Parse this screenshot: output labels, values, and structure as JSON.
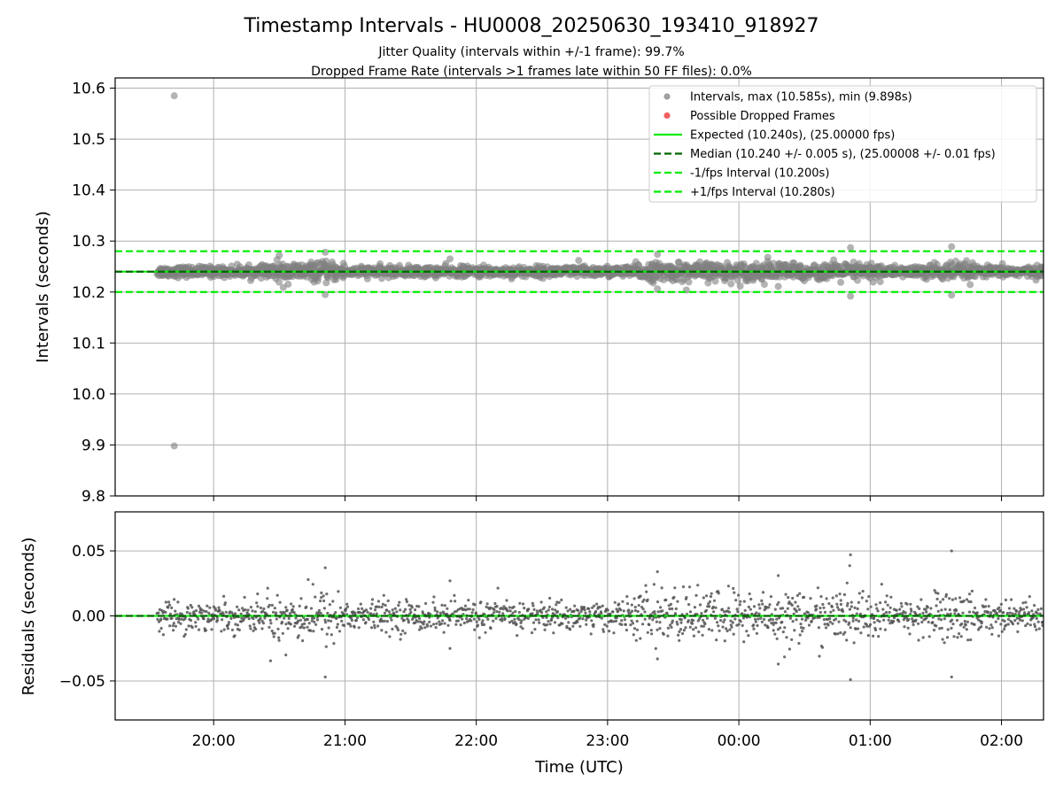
{
  "chart_data": {
    "title": "Timestamp Intervals - HU0008_20250630_193410_918927",
    "subtitles": [
      "Jitter Quality (intervals within +/-1 frame): 99.7%",
      "Dropped Frame Rate (intervals >1 frames late within 50 FF files): 0.0%"
    ],
    "x_axis": {
      "label": "Time (UTC)",
      "start_hours": 19.25,
      "end_hours": 26.32,
      "ticks": [
        {
          "hours": 20,
          "label": "20:00"
        },
        {
          "hours": 21,
          "label": "21:00"
        },
        {
          "hours": 22,
          "label": "22:00"
        },
        {
          "hours": 23,
          "label": "23:00"
        },
        {
          "hours": 24,
          "label": "00:00"
        },
        {
          "hours": 25,
          "label": "01:00"
        },
        {
          "hours": 26,
          "label": "02:00"
        }
      ],
      "data_start_hours": 19.57,
      "data_end_hours": 26.32
    },
    "panels": [
      {
        "type": "scatter",
        "ylabel": "Intervals (seconds)",
        "ylim": [
          9.8,
          10.62
        ],
        "yticks": [
          "9.8",
          "9.9",
          "10.0",
          "10.1",
          "10.2",
          "10.3",
          "10.4",
          "10.5",
          "10.6"
        ],
        "grid": true,
        "legend_position": "upper right",
        "series": [
          {
            "name": "Intervals, max (10.585s), min (9.898s)",
            "type": "scatter",
            "color": "#808080",
            "center": 10.24,
            "typical_spread": 0.005,
            "points": [
              {
                "x": 19.7,
                "y": 10.585
              },
              {
                "x": 19.7,
                "y": 9.898
              },
              {
                "x": 20.5,
                "y": 10.272
              },
              {
                "x": 20.53,
                "y": 10.209
              },
              {
                "x": 20.85,
                "y": 10.195
              },
              {
                "x": 20.85,
                "y": 10.278
              },
              {
                "x": 21.8,
                "y": 10.265
              },
              {
                "x": 22.78,
                "y": 10.262
              },
              {
                "x": 23.38,
                "y": 10.274
              },
              {
                "x": 23.38,
                "y": 10.206
              },
              {
                "x": 23.6,
                "y": 10.204
              },
              {
                "x": 24.22,
                "y": 10.268
              },
              {
                "x": 24.3,
                "y": 10.211
              },
              {
                "x": 24.85,
                "y": 10.287
              },
              {
                "x": 24.85,
                "y": 10.192
              },
              {
                "x": 25.62,
                "y": 10.289
              },
              {
                "x": 25.62,
                "y": 10.194
              }
            ]
          },
          {
            "name": "Possible Dropped Frames",
            "type": "scatter",
            "color": "#f06060",
            "points": []
          },
          {
            "name": "Expected (10.240s), (25.00000 fps)",
            "type": "hline",
            "y": 10.24,
            "color": "#00ee00",
            "style": "solid"
          },
          {
            "name": "Median (10.240 +/- 0.005 s), (25.00008 +/- 0.01 fps)",
            "type": "hline",
            "y": 10.24,
            "color": "#006400",
            "style": "dashed"
          },
          {
            "name": "-1/fps Interval (10.200s)",
            "type": "hline",
            "y": 10.2,
            "color": "#00ee00",
            "style": "dashed"
          },
          {
            "name": "+1/fps Interval (10.280s)",
            "type": "hline",
            "y": 10.28,
            "color": "#00ee00",
            "style": "dashed"
          }
        ]
      },
      {
        "type": "scatter",
        "ylabel": "Residuals (seconds)",
        "ylim": [
          -0.08,
          0.08
        ],
        "yticks": [
          {
            "value": 0.05,
            "label": "0.05"
          },
          {
            "value": 0.0,
            "label": "0.00"
          },
          {
            "value": -0.05,
            "label": "−0.05"
          }
        ],
        "grid": true,
        "series": [
          {
            "name": "Residuals",
            "type": "scatter",
            "color": "#606060",
            "center": 0.0,
            "typical_spread": 0.006,
            "points": [
              {
                "x": 20.85,
                "y": 0.037
              },
              {
                "x": 20.85,
                "y": -0.047
              },
              {
                "x": 24.85,
                "y": 0.047
              },
              {
                "x": 24.85,
                "y": -0.049
              },
              {
                "x": 25.62,
                "y": 0.05
              },
              {
                "x": 25.62,
                "y": -0.047
              },
              {
                "x": 21.8,
                "y": 0.027
              },
              {
                "x": 21.8,
                "y": -0.025
              },
              {
                "x": 23.38,
                "y": 0.034
              },
              {
                "x": 23.38,
                "y": -0.033
              },
              {
                "x": 24.3,
                "y": 0.031
              },
              {
                "x": 24.3,
                "y": -0.037
              },
              {
                "x": 20.55,
                "y": -0.03
              }
            ]
          },
          {
            "name": "Zero (expected)",
            "type": "hline",
            "y": 0.0,
            "color": "#00ee00",
            "style": "solid"
          },
          {
            "name": "Median",
            "type": "hline",
            "y": 0.0,
            "color": "#006400",
            "style": "dashed"
          }
        ]
      }
    ],
    "legend": [
      {
        "label": "Intervals, max (10.585s), min (9.898s)",
        "kind": "marker",
        "color": "#a0a0a0"
      },
      {
        "label": "Possible Dropped Frames",
        "kind": "marker",
        "color": "#f06060"
      },
      {
        "label": "Expected (10.240s), (25.00000 fps)",
        "kind": "solid",
        "color": "#00ee00"
      },
      {
        "label": "Median (10.240 +/- 0.005 s), (25.00008 +/- 0.01 fps)",
        "kind": "dashed",
        "color": "#006400"
      },
      {
        "label": "-1/fps Interval (10.200s)",
        "kind": "dashed",
        "color": "#00ee00"
      },
      {
        "label": "+1/fps Interval (10.280s)",
        "kind": "dashed",
        "color": "#00ee00"
      }
    ]
  }
}
